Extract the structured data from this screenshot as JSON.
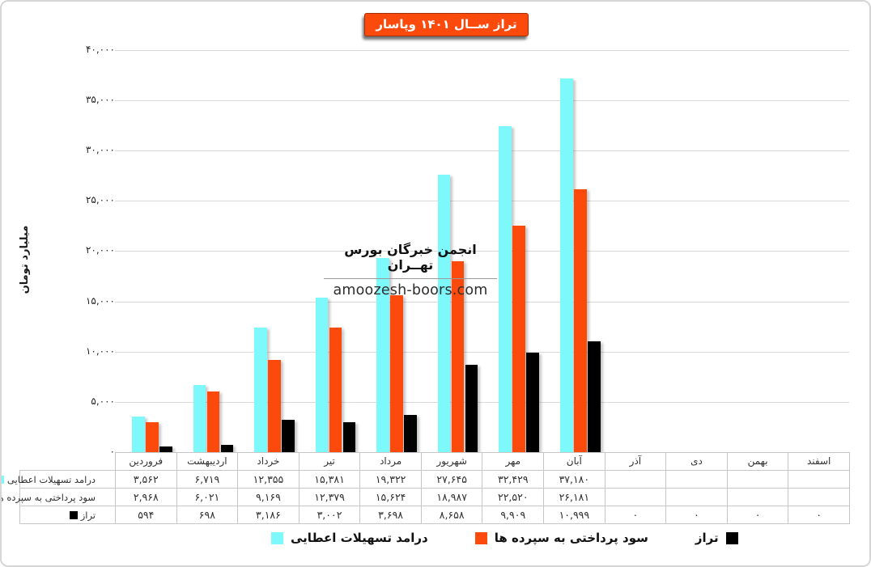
{
  "title": "تراز ســال ۱۴۰۱ وپاسار",
  "title_bg_color": "#FC4A0D",
  "watermark": {
    "line1": "انجمن خبرگان بورس تهــران",
    "line2": "amoozesh-boors.com"
  },
  "y_axis": {
    "label": "میلیارد تومان",
    "ticks": [
      "۴۰,۰۰۰",
      "۳۵,۰۰۰",
      "۳۰,۰۰۰",
      "۲۵,۰۰۰",
      "۲۰,۰۰۰",
      "۱۵,۰۰۰",
      "۱۰,۰۰۰",
      "۵,۰۰۰",
      "۰"
    ]
  },
  "chart_data": {
    "type": "bar",
    "title": "تراز ســال ۱۴۰۱ وپاسار",
    "ylabel": "میلیارد تومان",
    "ylim": [
      0,
      40000
    ],
    "grid": true,
    "legend_position": "bottom",
    "categories": [
      "فروردین",
      "اردیبهشت",
      "خرداد",
      "تیر",
      "مرداد",
      "شهریور",
      "مهر",
      "آبان",
      "آذر",
      "دی",
      "بهمن",
      "اسفند"
    ],
    "series": [
      {
        "name": "درامد تسهیلات اعطایی",
        "color": "#7EF9FB",
        "values": [
          3562,
          6719,
          12355,
          15381,
          19322,
          27645,
          32429,
          37180,
          null,
          null,
          null,
          null
        ],
        "display": [
          "۳,۵۶۲",
          "۶,۷۱۹",
          "۱۲,۳۵۵",
          "۱۵,۳۸۱",
          "۱۹,۳۲۲",
          "۲۷,۶۴۵",
          "۳۲,۴۲۹",
          "۳۷,۱۸۰",
          "",
          "",
          "",
          ""
        ]
      },
      {
        "name": "سود پرداختی به سپرده ها",
        "color": "#FC4A0D",
        "values": [
          2968,
          6021,
          9169,
          12379,
          15624,
          18987,
          22520,
          26181,
          null,
          null,
          null,
          null
        ],
        "display": [
          "۲,۹۶۸",
          "۶,۰۲۱",
          "۹,۱۶۹",
          "۱۲,۳۷۹",
          "۱۵,۶۲۴",
          "۱۸,۹۸۷",
          "۲۲,۵۲۰",
          "۲۶,۱۸۱",
          "",
          "",
          "",
          ""
        ]
      },
      {
        "name": "تراز",
        "color": "#000000",
        "values": [
          594,
          698,
          3186,
          3002,
          3698,
          8658,
          9909,
          10999,
          0,
          0,
          0,
          0
        ],
        "display": [
          "۵۹۴",
          "۶۹۸",
          "۳,۱۸۶",
          "۳,۰۰۲",
          "۳,۶۹۸",
          "۸,۶۵۸",
          "۹,۹۰۹",
          "۱۰,۹۹۹",
          "۰",
          "۰",
          "۰",
          "۰"
        ]
      }
    ],
    "gridline_color": "#dadada"
  },
  "legend": {
    "items": [
      {
        "label": "درامد تسهیلات اعطایی",
        "color": "#7EF9FB"
      },
      {
        "label": "سود پرداختی به سپرده ها",
        "color": "#FC4A0D"
      },
      {
        "label": "تراز",
        "color": "#000000"
      }
    ]
  }
}
